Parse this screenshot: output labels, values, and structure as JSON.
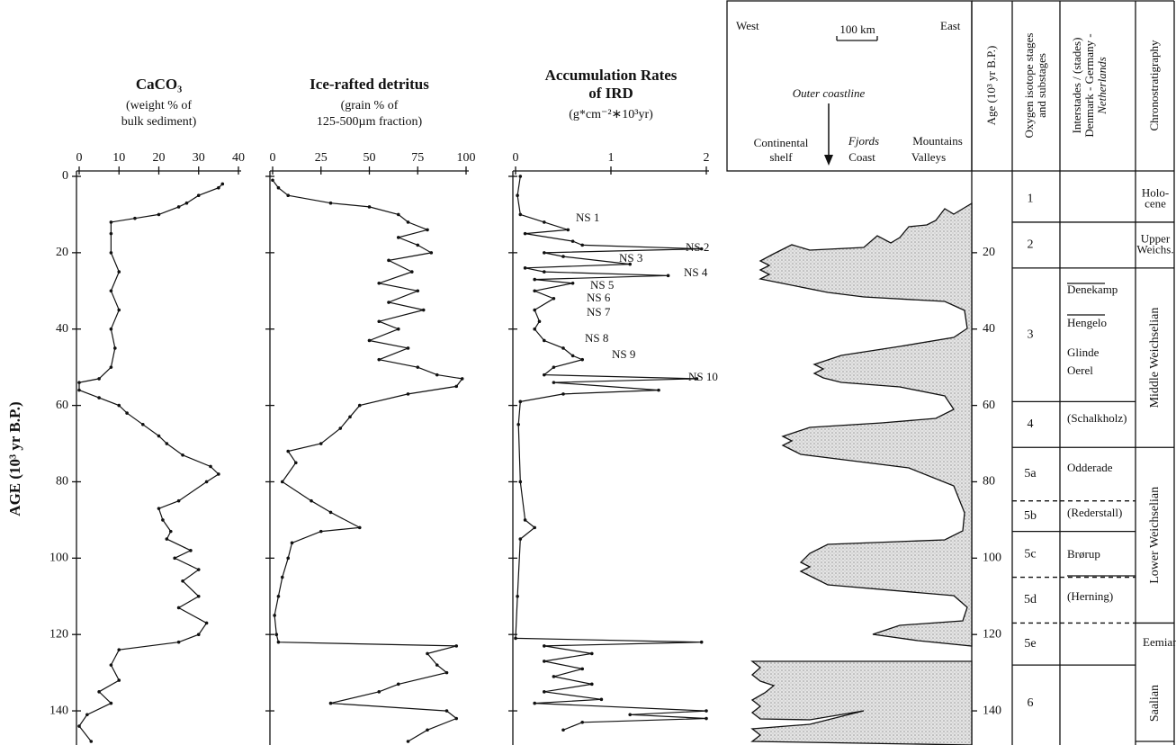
{
  "chart_data": [
    {
      "type": "line",
      "title": [
        "CaCO₃"
      ],
      "subtitle": [
        "(weight % of",
        "bulk sediment)"
      ],
      "ylabel": "AGE (10³ yr B.P.)",
      "xlim": [
        0,
        40
      ],
      "xticks": [
        0,
        10,
        20,
        30,
        40
      ],
      "ylim": [
        0,
        148
      ],
      "yticks": [
        0,
        20,
        40,
        60,
        80,
        100,
        120,
        140
      ],
      "color": "#111111",
      "ages": [
        2,
        3,
        5,
        7,
        8,
        10,
        11,
        12,
        15,
        20,
        25,
        30,
        35,
        40,
        45,
        50,
        53,
        54,
        56,
        58,
        60,
        62,
        65,
        68,
        70,
        73,
        76,
        78,
        80,
        85,
        87,
        90,
        93,
        95,
        98,
        100,
        103,
        106,
        110,
        113,
        117,
        120,
        122,
        124,
        128,
        132,
        135,
        138,
        141,
        144,
        148
      ],
      "values": [
        36,
        35,
        30,
        27,
        25,
        20,
        14,
        8,
        8,
        8,
        10,
        8,
        10,
        8,
        9,
        8,
        5,
        0,
        0,
        5,
        10,
        12,
        16,
        20,
        22,
        26,
        33,
        35,
        32,
        25,
        20,
        21,
        23,
        22,
        28,
        24,
        30,
        26,
        30,
        25,
        32,
        30,
        25,
        10,
        8,
        10,
        5,
        8,
        2,
        0,
        3
      ]
    },
    {
      "type": "line",
      "title": [
        "Ice-rafted detritus"
      ],
      "subtitle": [
        "(grain % of",
        "125-500µm fraction)"
      ],
      "xlim": [
        0,
        100
      ],
      "xticks": [
        0,
        25,
        50,
        75,
        100
      ],
      "color": "#111111",
      "ages": [
        1,
        3,
        5,
        7,
        8,
        10,
        12,
        14,
        16,
        18,
        20,
        22,
        25,
        28,
        30,
        33,
        35,
        38,
        40,
        43,
        45,
        48,
        50,
        52,
        53,
        55,
        57,
        60,
        63,
        66,
        70,
        72,
        75,
        80,
        85,
        88,
        92,
        93,
        96,
        100,
        105,
        110,
        115,
        120,
        122,
        123,
        125,
        128,
        130,
        133,
        135,
        138,
        140,
        142,
        145,
        148
      ],
      "values": [
        0,
        3,
        8,
        30,
        50,
        65,
        70,
        80,
        65,
        75,
        82,
        60,
        72,
        55,
        75,
        60,
        78,
        55,
        65,
        50,
        70,
        55,
        75,
        85,
        98,
        95,
        70,
        45,
        40,
        35,
        25,
        8,
        12,
        5,
        20,
        30,
        45,
        25,
        10,
        8,
        5,
        3,
        1,
        2,
        3,
        95,
        80,
        85,
        90,
        65,
        55,
        30,
        90,
        95,
        80,
        70
      ]
    },
    {
      "type": "line",
      "title": [
        "Accumulation Rates",
        "of IRD"
      ],
      "subtitle": [
        "(g*cm⁻²∗10³yr)"
      ],
      "xlim": [
        0,
        2
      ],
      "xticks": [
        0,
        1,
        2
      ],
      "color": "#111111",
      "annotations": [
        "NS 1",
        "NS 2",
        "NS 3",
        "NS 4",
        "NS 5",
        "NS 6",
        "NS 7",
        "NS 8",
        "NS 9",
        "NS 10"
      ],
      "ages": [
        0,
        5,
        10,
        12,
        14,
        15,
        17,
        18,
        19,
        20,
        21,
        23,
        24,
        25,
        26,
        27,
        28,
        30,
        32,
        35,
        38,
        40,
        43,
        45,
        47,
        48,
        50,
        52,
        53,
        54,
        56,
        57,
        59,
        65,
        80,
        90,
        92,
        95,
        110,
        121,
        122,
        123,
        125,
        127,
        129,
        131,
        133,
        135,
        137,
        138,
        140,
        141,
        142,
        143,
        145
      ],
      "values": [
        0.05,
        0.02,
        0.05,
        0.3,
        0.55,
        0.1,
        0.6,
        0.7,
        1.95,
        0.3,
        0.5,
        1.2,
        0.1,
        0.3,
        1.6,
        0.2,
        0.6,
        0.2,
        0.4,
        0.2,
        0.25,
        0.2,
        0.3,
        0.5,
        0.6,
        0.7,
        0.4,
        0.3,
        1.9,
        0.4,
        1.5,
        0.5,
        0.05,
        0.03,
        0.05,
        0.1,
        0.2,
        0.05,
        0.02,
        0,
        1.95,
        0.3,
        0.8,
        0.3,
        0.7,
        0.4,
        0.8,
        0.3,
        0.9,
        0.2,
        2.0,
        1.2,
        2.0,
        0.7,
        0.5
      ]
    }
  ],
  "diagram": {
    "header": {
      "west": "West",
      "scale": "100 km",
      "east": "East",
      "coastline": "Outer coastline",
      "shelf": [
        "Continental",
        "shelf"
      ],
      "fjords": "Fjords",
      "coast": "Coast",
      "mountains": "Mountains",
      "valleys": "Valleys"
    },
    "columns": {
      "age": "Age (10³ yr B.P.)",
      "stages": [
        "Oxygen isotope stages",
        "and substages"
      ],
      "interstades": [
        "Interstades / (stades)",
        "Denmark - Germany -",
        "Netherlands"
      ],
      "chrono": "Chronostratigraphy"
    },
    "age_ticks": [
      20,
      40,
      60,
      80,
      100,
      120,
      140
    ],
    "stages": [
      {
        "label": "1",
        "from": 0,
        "to": 12
      },
      {
        "label": "2",
        "from": 12,
        "to": 24
      },
      {
        "label": "3",
        "from": 24,
        "to": 59
      },
      {
        "label": "4",
        "from": 59,
        "to": 71
      },
      {
        "label": "5a",
        "from": 71,
        "to": 85
      },
      {
        "label": "5b",
        "from": 85,
        "to": 93,
        "dashed": true
      },
      {
        "label": "5c",
        "from": 93,
        "to": 105
      },
      {
        "label": "5d",
        "from": 105,
        "to": 117,
        "dashed": true
      },
      {
        "label": "5e",
        "from": 117,
        "to": 128,
        "dashed": true
      },
      {
        "label": "6",
        "from": 128,
        "to": 148
      }
    ],
    "interstades": [
      "Denekamp",
      "Hengelo",
      "Glinde",
      "Oerel",
      "(Schalkholz)",
      "Odderade",
      "(Rederstall)",
      "Brørup",
      "(Herning)",
      "Eemian"
    ],
    "chronostratigraphy": [
      {
        "label": [
          "Holo-",
          "cene"
        ],
        "from": 0,
        "to": 12
      },
      {
        "label": [
          "Upper",
          "Weichs."
        ],
        "from": 12,
        "to": 24
      },
      {
        "label": [
          "Middle Weichselian"
        ],
        "from": 24,
        "to": 71
      },
      {
        "label": [
          "Lower Weichselian"
        ],
        "from": 71,
        "to": 117
      },
      {
        "label": [
          "Saalian"
        ],
        "from": 128,
        "to": 148
      }
    ]
  }
}
